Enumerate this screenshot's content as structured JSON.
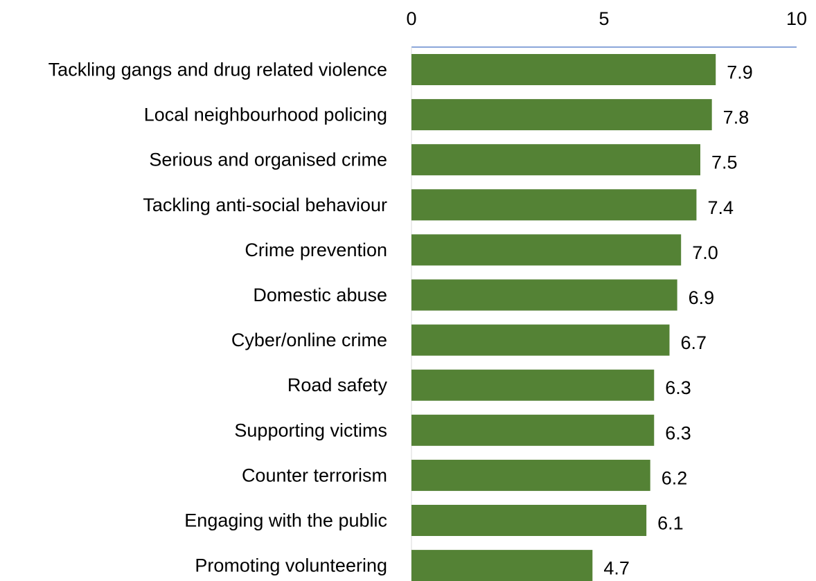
{
  "chart_data": {
    "type": "bar",
    "orientation": "horizontal",
    "categories": [
      "Tackling gangs and drug related violence",
      "Local neighbourhood policing",
      "Serious and organised crime",
      "Tackling anti-social behaviour",
      "Crime prevention",
      "Domestic abuse",
      "Cyber/online crime",
      "Road safety",
      "Supporting victims",
      "Counter terrorism",
      "Engaging with the public",
      "Promoting volunteering"
    ],
    "values": [
      7.9,
      7.8,
      7.5,
      7.4,
      7.0,
      6.9,
      6.7,
      6.3,
      6.3,
      6.2,
      6.1,
      4.7
    ],
    "data_labels": [
      "7.9",
      "7.8",
      "7.5",
      "7.4",
      "7.0",
      "6.9",
      "6.7",
      "6.3",
      "6.3",
      "6.2",
      "6.1",
      "4.7"
    ],
    "xlim": [
      0,
      10
    ],
    "xticks": [
      0,
      5,
      10
    ],
    "xtick_labels": [
      "0",
      "5",
      "10"
    ],
    "x_axis_position": "top",
    "grid": false,
    "bar_color": "#548235",
    "axis_line_color": "#4472c4",
    "title": "",
    "xlabel": "",
    "ylabel": ""
  }
}
